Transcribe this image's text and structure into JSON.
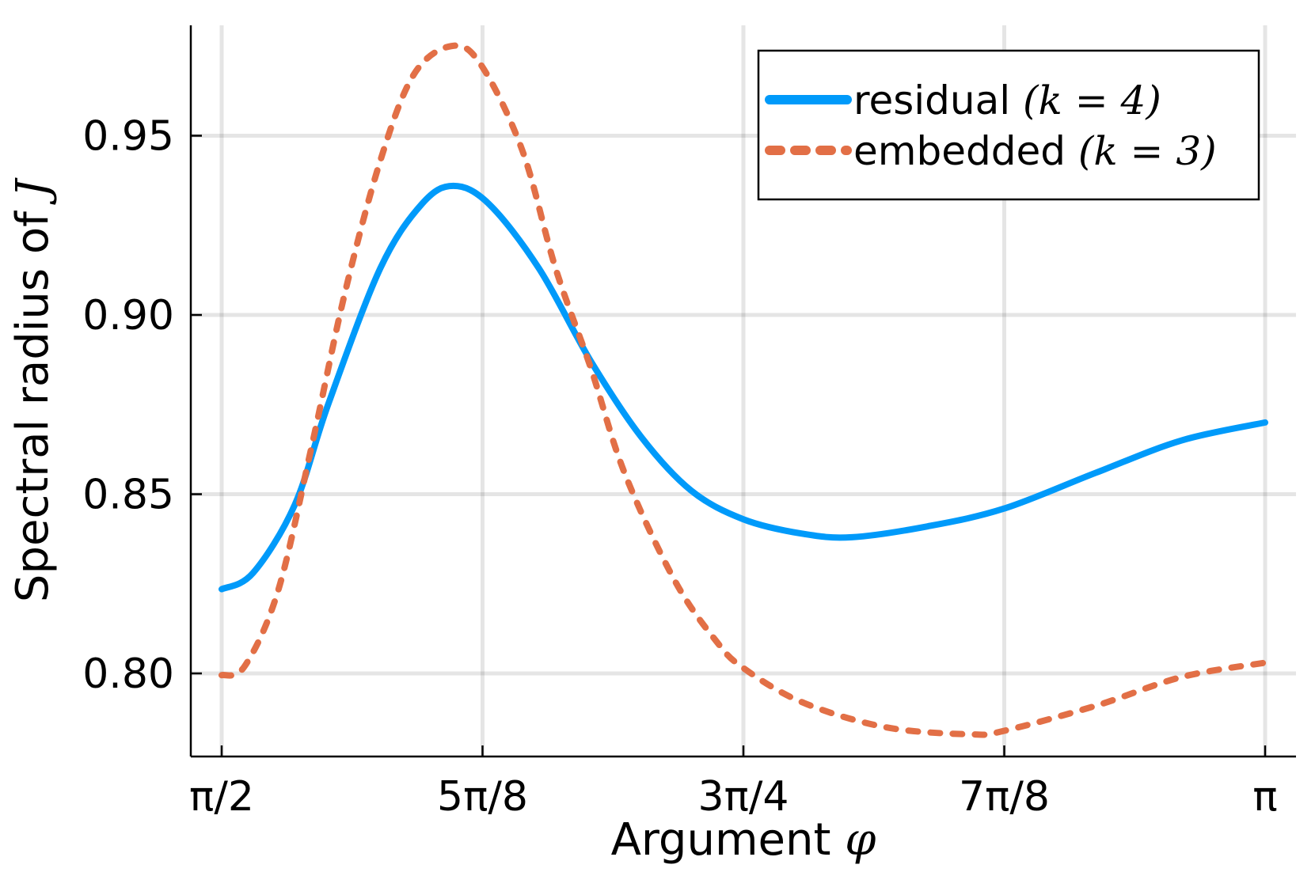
{
  "chart_data": {
    "type": "line",
    "xlabel": "Argument",
    "xlabel_symbol": "φ",
    "ylabel": "Spectral radius of",
    "ylabel_symbol": "J",
    "x_unit": "multiples of π",
    "xlim": [
      0.5,
      1.0
    ],
    "ylim": [
      0.777,
      0.981
    ],
    "grid": true,
    "legend_position": "top-right",
    "x_ticks": [
      {
        "value": 0.5,
        "label": "π/2"
      },
      {
        "value": 0.625,
        "label": "5π/8"
      },
      {
        "value": 0.75,
        "label": "3π/4"
      },
      {
        "value": 0.875,
        "label": "7π/8"
      },
      {
        "value": 1.0,
        "label": "π"
      }
    ],
    "y_ticks": [
      {
        "value": 0.8,
        "label": "0.80"
      },
      {
        "value": 0.85,
        "label": "0.85"
      },
      {
        "value": 0.9,
        "label": "0.90"
      },
      {
        "value": 0.95,
        "label": "0.95"
      }
    ],
    "series": [
      {
        "name": "residual",
        "name_math": "(k = 4)",
        "color": "#009AFA",
        "style": "solid",
        "x": [
          0.5,
          0.515,
          0.535,
          0.551,
          0.576,
          0.596,
          0.611,
          0.628,
          0.652,
          0.677,
          0.701,
          0.725,
          0.75,
          0.778,
          0.802,
          0.838,
          0.875,
          0.919,
          0.96,
          1.0
        ],
        "y": [
          0.8235,
          0.828,
          0.847,
          0.875,
          0.913,
          0.931,
          0.936,
          0.931,
          0.913,
          0.887,
          0.866,
          0.851,
          0.843,
          0.839,
          0.838,
          0.841,
          0.846,
          0.856,
          0.865,
          0.87
        ]
      },
      {
        "name": "embedded",
        "name_math": "(k = 3)",
        "color": "#E26F46",
        "style": "dashed",
        "x": [
          0.5,
          0.511,
          0.527,
          0.543,
          0.559,
          0.576,
          0.592,
          0.61,
          0.624,
          0.644,
          0.66,
          0.677,
          0.693,
          0.717,
          0.737,
          0.75,
          0.778,
          0.818,
          0.859,
          0.875,
          0.919,
          0.96,
          1.0
        ],
        "y": [
          0.7995,
          0.802,
          0.823,
          0.863,
          0.906,
          0.943,
          0.967,
          0.975,
          0.97,
          0.946,
          0.913,
          0.885,
          0.856,
          0.826,
          0.809,
          0.8015,
          0.792,
          0.785,
          0.783,
          0.784,
          0.791,
          0.799,
          0.803
        ]
      }
    ]
  }
}
